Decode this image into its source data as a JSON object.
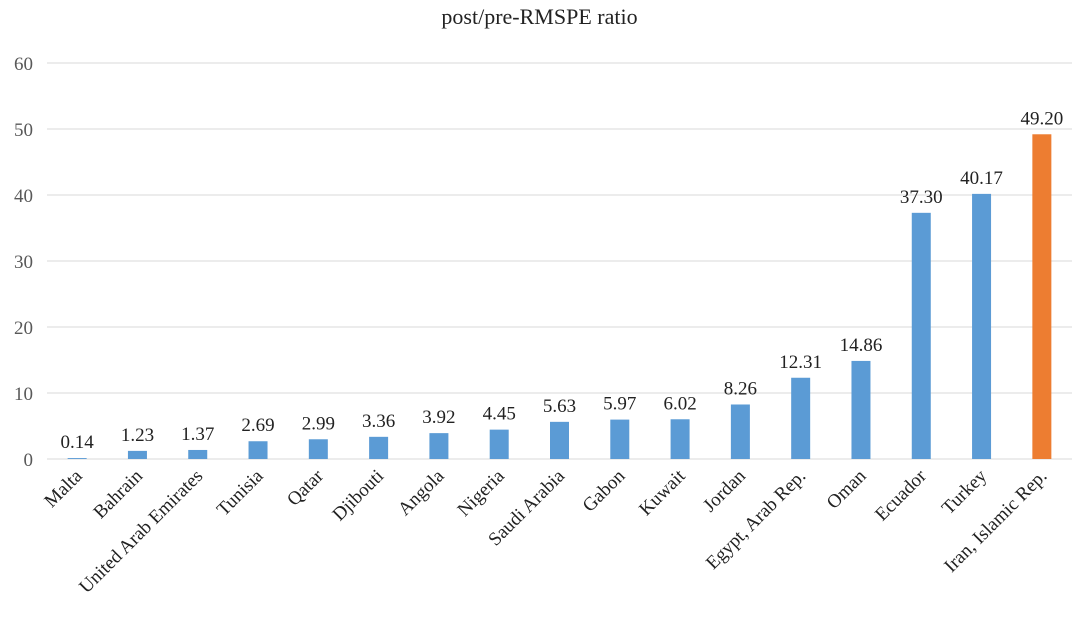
{
  "chart_data": {
    "type": "bar",
    "title": "post/pre-RMSPE ratio",
    "xlabel": "",
    "ylabel": "",
    "ylim": [
      0,
      60
    ],
    "yticks": [
      0,
      10,
      20,
      30,
      40,
      50,
      60
    ],
    "grid": true,
    "categories": [
      "Malta",
      "Bahrain",
      "United Arab Emirates",
      "Tunisia",
      "Qatar",
      "Djibouti",
      "Angola",
      "Nigeria",
      "Saudi Arabia",
      "Gabon",
      "Kuwait",
      "Jordan",
      "Egypt, Arab Rep.",
      "Oman",
      "Ecuador",
      "Turkey",
      "Iran, Islamic Rep."
    ],
    "values": [
      0.14,
      1.23,
      1.37,
      2.69,
      2.99,
      3.36,
      3.92,
      4.45,
      5.63,
      5.97,
      6.02,
      8.26,
      12.31,
      14.86,
      37.3,
      40.17,
      49.2
    ],
    "value_labels": [
      "0.14",
      "1.23",
      "1.37",
      "2.69",
      "2.99",
      "3.36",
      "3.92",
      "4.45",
      "5.63",
      "5.97",
      "6.02",
      "8.26",
      "12.31",
      "14.86",
      "37.30",
      "40.17",
      "49.20"
    ],
    "colors": {
      "default_bar": "#5B9BD5",
      "highlight_bar": "#ED7D31",
      "gridline": "#D9D9D9",
      "text": "#595959",
      "label_text": "#222222"
    },
    "highlight_category": "Iran, Islamic Rep."
  }
}
